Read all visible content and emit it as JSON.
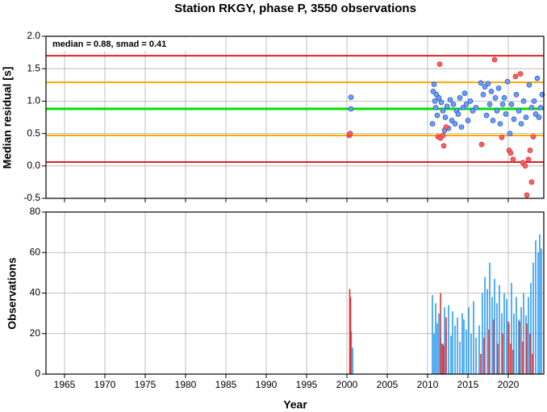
{
  "chart_data": [
    {
      "type": "scatter",
      "title": "Station RKGY, phase P, 3550 observations",
      "y_label": "Median residual [s]",
      "annotation": "median = 0.88, smad = 0.41",
      "xlim": [
        1962.7,
        2024.4
      ],
      "ylim": [
        -0.5,
        2.0
      ],
      "xticks": [
        1965,
        1970,
        1975,
        1980,
        1985,
        1990,
        1995,
        2000,
        2005,
        2010,
        2015,
        2020
      ],
      "yticks": [
        -0.5,
        {
          "value": 0,
          "label": "0.0"
        },
        0.5,
        {
          "value": 1,
          "label": "1.0"
        },
        1.5,
        {
          "value": 2,
          "label": "2.0"
        }
      ],
      "grid": true,
      "hlines": [
        {
          "value": 1.7,
          "color": "#e02020"
        },
        {
          "value": 1.29,
          "color": "#ffa500"
        },
        {
          "value": 0.88,
          "color": "#00e000"
        },
        {
          "value": 0.47,
          "color": "#ffa500"
        },
        {
          "value": 0.06,
          "color": "#e02020"
        }
      ],
      "series": [
        {
          "color": "#6a9ef5",
          "x": [
            2000.5,
            2000.5,
            2010.6,
            2010.7,
            2010.8,
            2010.9,
            2011.0,
            2011.1,
            2011.2,
            2011.4,
            2011.7,
            2011.9,
            2012.1,
            2012.2,
            2012.4,
            2012.6,
            2012.8,
            2013.0,
            2013.2,
            2013.4,
            2013.6,
            2013.8,
            2014.0,
            2014.2,
            2014.4,
            2014.6,
            2014.8,
            2015.0,
            2015.3,
            2015.6,
            2016.0,
            2016.6,
            2016.9,
            2017.1,
            2017.3,
            2017.5,
            2017.7,
            2017.9,
            2018.1,
            2018.4,
            2018.6,
            2018.8,
            2019.0,
            2019.3,
            2019.5,
            2019.7,
            2019.9,
            2020.2,
            2020.4,
            2020.7,
            2021.0,
            2021.3,
            2021.6,
            2021.9,
            2022.2,
            2022.6,
            2022.9,
            2023.2,
            2023.4,
            2023.6,
            2023.8,
            2024.0,
            2024.2
          ],
          "values": [
            1.06,
            0.88,
            0.65,
            1.15,
            1.26,
            1.0,
            0.9,
            1.1,
            0.78,
            1.05,
            0.98,
            0.85,
            0.55,
            0.75,
            0.92,
            0.58,
            1.02,
            0.7,
            0.95,
            0.65,
            0.85,
            0.8,
            1.05,
            0.6,
            0.9,
            1.12,
            0.95,
            0.7,
            1.0,
            0.85,
            0.9,
            1.28,
            1.1,
            1.22,
            0.78,
            1.27,
            0.95,
            1.15,
            0.7,
            1.05,
            0.85,
            1.2,
            0.65,
            0.95,
            1.05,
            0.8,
            1.3,
            0.5,
            0.95,
            0.72,
            1.1,
            0.85,
            0.65,
            1.0,
            0.75,
            1.25,
            0.9,
            1.0,
            0.8,
            1.35,
            0.75,
            0.9,
            1.1
          ]
        },
        {
          "color": "#ff6060",
          "x": [
            2000.3,
            2000.4,
            2011.5,
            2011.3,
            2011.6,
            2011.9,
            2012.0,
            2012.3,
            2016.7,
            2018.3,
            2019.2,
            2020.1,
            2020.3,
            2020.6,
            2020.9,
            2021.5,
            2021.8,
            2022.1,
            2022.5,
            2022.7,
            2022.9,
            2022.3,
            2023.1
          ],
          "values": [
            0.47,
            0.5,
            1.57,
            0.45,
            0.43,
            0.47,
            0.31,
            0.6,
            0.33,
            1.64,
            0.44,
            0.24,
            0.2,
            0.1,
            1.38,
            1.42,
            0.05,
            0.0,
            0.1,
            0.24,
            -0.25,
            -0.45,
            0.45
          ]
        }
      ]
    },
    {
      "type": "bar",
      "x_label": "Year",
      "y_label": "Observations",
      "xlim": [
        1962.7,
        2024.4
      ],
      "ylim": [
        0,
        80
      ],
      "xticks": [
        1965,
        1970,
        1975,
        1980,
        1985,
        1990,
        1995,
        2000,
        2005,
        2010,
        2015,
        2020
      ],
      "yticks": [
        0,
        20,
        40,
        60,
        80
      ],
      "grid": true,
      "series": [
        {
          "color": "#2e9cf0",
          "x": [
            2000.55,
            2000.7,
            2010.6,
            2010.8,
            2011.0,
            2011.2,
            2011.4,
            2011.6,
            2011.9,
            2012.1,
            2012.3,
            2012.6,
            2012.9,
            2013.1,
            2013.4,
            2013.7,
            2014.0,
            2014.3,
            2014.5,
            2014.8,
            2015.1,
            2015.4,
            2015.7,
            2016.0,
            2016.4,
            2016.8,
            2017.1,
            2017.4,
            2017.7,
            2018.0,
            2018.3,
            2018.6,
            2018.9,
            2019.2,
            2019.5,
            2019.8,
            2020.1,
            2020.4,
            2020.7,
            2021.0,
            2021.3,
            2021.6,
            2021.9,
            2022.2,
            2022.5,
            2022.8,
            2023.1,
            2023.4,
            2023.7,
            2023.9,
            2024.1
          ],
          "values": [
            21,
            13,
            39,
            20,
            35,
            25,
            30,
            18,
            15,
            33,
            22,
            34,
            19,
            31,
            24,
            28,
            16,
            30,
            27,
            22,
            33,
            20,
            36,
            18,
            24,
            40,
            48,
            42,
            55,
            38,
            47,
            35,
            44,
            30,
            40,
            37,
            25,
            45,
            30,
            38,
            27,
            33,
            40,
            29,
            38,
            45,
            55,
            66,
            60,
            69,
            62
          ]
        },
        {
          "color": "#e53030",
          "x": [
            2000.35,
            2000.45,
            2011.6,
            2011.8,
            2012.0,
            2012.3,
            2016.6,
            2017.0,
            2017.6,
            2018.2,
            2018.7,
            2019.3,
            2020.0,
            2020.3,
            2020.6,
            2021.4,
            2021.8,
            2022.3,
            2022.7,
            2023.0
          ],
          "values": [
            42,
            38,
            40,
            15,
            14,
            28,
            10,
            18,
            22,
            27,
            15,
            20,
            26,
            15,
            12,
            26,
            16,
            25,
            20,
            10
          ]
        }
      ]
    }
  ]
}
